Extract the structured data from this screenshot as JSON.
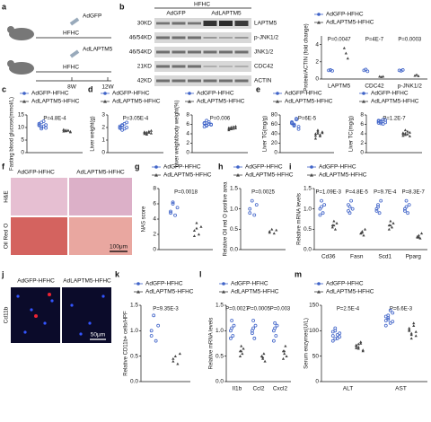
{
  "panel_letters": [
    "a",
    "b",
    "c",
    "d",
    "e",
    "f",
    "g",
    "h",
    "i",
    "j",
    "k",
    "l",
    "m"
  ],
  "schematic": {
    "virus1": "AdGFP",
    "virus2": "AdLAPTM5",
    "diet1": "HFHC",
    "diet2": "HFHC",
    "t1": "8W",
    "t2": "12W"
  },
  "blot": {
    "group": "HFHC",
    "lanes": [
      "AdGFP",
      "AdLAPTM5"
    ],
    "sizes": [
      "30KD",
      "46/54KD",
      "46/54KD",
      "21KD",
      "42KD"
    ],
    "proteins": [
      "LAPTM5",
      "p-JNK1/2",
      "JNK1/2",
      "CDC42",
      "ACTIN"
    ]
  },
  "histology": {
    "columns": [
      "AdGFP-HFHC",
      "AdLAPTM5-HFHC"
    ],
    "rows": [
      "H&E",
      "Oil Red O"
    ],
    "scale": "100μm"
  },
  "ihc": {
    "columns": [
      "AdGFP-HFHC",
      "AdLAPTM5-HFHC"
    ],
    "row": "Cd11b",
    "scale": "50μm"
  },
  "chart_data": [
    {
      "type": "dot",
      "y_label": "Protein/ACTIN (fold change)",
      "categories": [
        "LAPTM5",
        "CDC42",
        "p-JNK1/2"
      ],
      "ylim": [
        0,
        5
      ],
      "yticks": [
        0,
        2,
        4
      ],
      "annotations": [
        "P=0.0047",
        "P=4E-7",
        "P=0.0003"
      ],
      "series": [
        {
          "name": "AdGFP-HFHC",
          "color": "#3f63c8",
          "values": [
            [
              1,
              1.05,
              0.95
            ],
            [
              1,
              1.1,
              0.9
            ],
            [
              1,
              0.95,
              1.05
            ]
          ]
        },
        {
          "name": "AdLAPTM5-HFHC",
          "color": "#444444",
          "values": [
            [
              3.6,
              3,
              2.4
            ],
            [
              0.3,
              0.25,
              0.3
            ],
            [
              0.4,
              0.5,
              0.35
            ]
          ]
        }
      ]
    },
    {
      "type": "dot",
      "y_label": "Fasting blood glucose(mmol/L)",
      "ylim": [
        0,
        15
      ],
      "yticks": [
        0,
        5,
        10,
        15
      ],
      "annotations": [
        "P=4.8E-4"
      ],
      "series": [
        {
          "name": "AdGFP-HFHC",
          "color": "#3f63c8",
          "values": [
            [
              11,
              12,
              10.5,
              9.8,
              11.5,
              10.2,
              12.5,
              11,
              10.8,
              9.5
            ]
          ]
        },
        {
          "name": "AdLAPTM5-HFHC",
          "color": "#444444",
          "values": [
            [
              8.5,
              9,
              8.8,
              8.2,
              9.2,
              8.6,
              8.9,
              8.4,
              9.1,
              8.7
            ]
          ]
        }
      ]
    },
    {
      "type": "dot",
      "y_label": "Liver weight(g)",
      "ylim": [
        0,
        3
      ],
      "yticks": [
        0,
        1,
        2,
        3
      ],
      "annotations": [
        "P=3.05E-4"
      ],
      "series": [
        {
          "name": "AdGFP-HFHC",
          "color": "#3f63c8",
          "values": [
            [
              2.0,
              2.2,
              1.9,
              2.4,
              2.1,
              1.8,
              2.3,
              2.0,
              1.95,
              2.15
            ]
          ]
        },
        {
          "name": "AdLAPTM5-HFHC",
          "color": "#444444",
          "values": [
            [
              1.6,
              1.5,
              1.7,
              1.55,
              1.65,
              1.45,
              1.6,
              1.75,
              1.5,
              1.62
            ]
          ]
        }
      ]
    },
    {
      "type": "dot",
      "y_label": "Liver weight/body weight(%)",
      "ylim": [
        0,
        8
      ],
      "yticks": [
        0,
        2,
        4,
        6,
        8
      ],
      "annotations": [
        "P=0.006"
      ],
      "series": [
        {
          "name": "AdGFP-HFHC",
          "color": "#3f63c8",
          "values": [
            [
              6.2,
              5.8,
              6.5,
              6,
              5.5,
              6.8,
              6.1,
              5.9,
              6.3,
              5.7
            ]
          ]
        },
        {
          "name": "AdLAPTM5-HFHC",
          "color": "#444444",
          "values": [
            [
              5.3,
              5,
              5.5,
              5.2,
              4.8,
              5.4,
              5.1,
              5.6,
              5,
              5.2
            ]
          ]
        }
      ]
    },
    {
      "type": "dot",
      "y_label": "Liver TG(mg/g)",
      "ylim": [
        0,
        80
      ],
      "yticks": [
        0,
        20,
        40,
        60,
        80
      ],
      "annotations": [
        "P=6E-5"
      ],
      "series": [
        {
          "name": "AdGFP-HFHC",
          "color": "#3f63c8",
          "values": [
            [
              62,
              58,
              70,
              55,
              65,
              60,
              72,
              50,
              63,
              57
            ]
          ]
        },
        {
          "name": "AdLAPTM5-HFHC",
          "color": "#444444",
          "values": [
            [
              40,
              45,
              35,
              42,
              30,
              48,
              38,
              44,
              36,
              41
            ]
          ]
        }
      ]
    },
    {
      "type": "dot",
      "y_label": "Liver TC(mg/g)",
      "ylim": [
        0,
        8
      ],
      "yticks": [
        0,
        2,
        4,
        6,
        8
      ],
      "annotations": [
        "P=1.2E-7"
      ],
      "series": [
        {
          "name": "AdGFP-HFHC",
          "color": "#3f63c8",
          "values": [
            [
              6.6,
              6.2,
              7,
              6.4,
              6.8,
              6.5,
              6.1,
              6.9,
              6.3,
              6.7
            ]
          ]
        },
        {
          "name": "AdLAPTM5-HFHC",
          "color": "#444444",
          "values": [
            [
              4.2,
              3.8,
              4.5,
              3.5,
              4,
              4.8,
              3.9,
              4.3,
              3.6,
              4.1
            ]
          ]
        }
      ]
    },
    {
      "type": "dot",
      "y_label": "NAS score",
      "ylim": [
        0,
        8
      ],
      "yticks": [
        0,
        2,
        4,
        6,
        8
      ],
      "annotations": [
        "P=0.0018"
      ],
      "series": [
        {
          "name": "AdGFP-HFHC",
          "color": "#3f63c8",
          "values": [
            [
              5,
              6,
              4.5,
              5.5,
              4.8,
              6.2
            ]
          ]
        },
        {
          "name": "AdLAPTM5-HFHC",
          "color": "#444444",
          "values": [
            [
              2.5,
              3.5,
              2,
              3,
              1.8,
              2.8
            ]
          ]
        }
      ]
    },
    {
      "type": "dot",
      "y_label": "Relative Oil red O positive area",
      "ylim": [
        0,
        1.5
      ],
      "yticks": [
        {
          "value": 0,
          "label": "0.0"
        },
        {
          "value": 0.5,
          "label": "0.5"
        },
        {
          "value": 1,
          "label": "1.0"
        },
        {
          "value": 1.5,
          "label": "1.5"
        }
      ],
      "annotations": [
        "P=0.0025"
      ],
      "series": [
        {
          "name": "AdGFP-HFHC",
          "color": "#3f63c8",
          "values": [
            [
              1.0,
              1.2,
              0.85,
              1.1,
              0.9
            ]
          ]
        },
        {
          "name": "AdLAPTM5-HFHC",
          "color": "#444444",
          "values": [
            [
              0.45,
              0.5,
              0.4,
              0.48,
              0.42
            ]
          ]
        }
      ]
    },
    {
      "type": "dot",
      "y_label": "Relative mRNA levels",
      "categories": [
        "Cd36",
        "Fasn",
        "Scd1",
        "Pparg"
      ],
      "ylim": [
        0,
        1.5
      ],
      "yticks": [
        {
          "value": 0,
          "label": "0.0"
        },
        {
          "value": 0.5,
          "label": "0.5"
        },
        {
          "value": 1,
          "label": "1.0"
        },
        {
          "value": 1.5,
          "label": "1.5"
        }
      ],
      "annotations": [
        "P=1.09E-3",
        "P=4.8E-5",
        "P=9.7E-4",
        "P=8.3E-7"
      ],
      "series": [
        {
          "name": "AdGFP-HFHC",
          "color": "#3f63c8",
          "values": [
            [
              1,
              1.2,
              0.9,
              1.1,
              0.85,
              1.05
            ],
            [
              1.1,
              0.9,
              1.2,
              1,
              0.95,
              1.05
            ],
            [
              1.0,
              1.1,
              0.9,
              1.2,
              0.95,
              1.05
            ],
            [
              1,
              1.2,
              0.9,
              1.1,
              0.95,
              1.05
            ]
          ]
        },
        {
          "name": "AdLAPTM5-HFHC",
          "color": "#444444",
          "values": [
            [
              0.6,
              0.7,
              0.5,
              0.65,
              0.55,
              0.6
            ],
            [
              0.4,
              0.45,
              0.35,
              0.5,
              0.4,
              0.42
            ],
            [
              0.6,
              0.7,
              0.55,
              0.65,
              0.5,
              0.6
            ],
            [
              0.3,
              0.35,
              0.28,
              0.4,
              0.32,
              0.3
            ]
          ]
        }
      ]
    },
    {
      "type": "dot",
      "y_label": "Relative CD11b+ cells/HPF",
      "ylim": [
        0,
        1.5
      ],
      "yticks": [
        {
          "value": 0,
          "label": "0.0"
        },
        {
          "value": 0.5,
          "label": "0.5"
        },
        {
          "value": 1,
          "label": "1.0"
        },
        {
          "value": 1.5,
          "label": "1.5"
        }
      ],
      "annotations": [
        "P=9.35E-3"
      ],
      "series": [
        {
          "name": "AdGFP-HFHC",
          "color": "#3f63c8",
          "values": [
            [
              1,
              1.3,
              0.8,
              1.1,
              0.9
            ]
          ]
        },
        {
          "name": "AdLAPTM5-HFHC",
          "color": "#444444",
          "values": [
            [
              0.45,
              0.5,
              0.35,
              0.55,
              0.4
            ]
          ]
        }
      ]
    },
    {
      "type": "dot",
      "y_label": "Relative mRNA levels",
      "categories": [
        "Il1b",
        "Ccl2",
        "Cxcl2"
      ],
      "ylim": [
        0,
        1.5
      ],
      "yticks": [
        {
          "value": 0,
          "label": "0.0"
        },
        {
          "value": 0.5,
          "label": "0.5"
        },
        {
          "value": 1,
          "label": "1.0"
        },
        {
          "value": 1.5,
          "label": "1.5"
        }
      ],
      "annotations": [
        "P=0.0027",
        "P=0.0005",
        "P=0.003"
      ],
      "series": [
        {
          "name": "AdGFP-HFHC",
          "color": "#3f63c8",
          "values": [
            [
              1,
              1.2,
              0.9,
              1.1,
              0.85,
              1.05
            ],
            [
              1,
              1.2,
              0.85,
              1.1,
              0.95,
              1.05
            ],
            [
              1,
              1.15,
              0.9,
              1.1,
              0.8,
              1.05
            ]
          ]
        },
        {
          "name": "AdLAPTM5-HFHC",
          "color": "#444444",
          "values": [
            [
              0.6,
              0.7,
              0.55,
              0.65,
              0.5,
              0.6
            ],
            [
              0.5,
              0.45,
              0.55,
              0.4,
              0.5,
              0.48
            ],
            [
              0.6,
              0.55,
              0.7,
              0.5,
              0.45,
              0.6
            ]
          ]
        }
      ]
    },
    {
      "type": "dot",
      "y_label": "Serum enzymes(U/L)",
      "categories": [
        "ALT",
        "AST"
      ],
      "ylim": [
        0,
        150
      ],
      "yticks": [
        0,
        50,
        100,
        150
      ],
      "annotations": [
        "P=2.5E-4",
        "P=6.6E-3"
      ],
      "series": [
        {
          "name": "AdGFP-HFHC",
          "color": "#3f63c8",
          "values": [
            [
              90,
              100,
              85,
              95,
              80,
              105,
              92,
              88,
              98,
              84
            ],
            [
              120,
              130,
              115,
              135,
              110,
              125,
              140,
              118,
              128,
              122
            ]
          ]
        },
        {
          "name": "AdLAPTM5-HFHC",
          "color": "#444444",
          "values": [
            [
              70,
              65,
              75,
              60,
              72,
              68,
              78,
              62,
              66,
              74
            ],
            [
              100,
              95,
              110,
              90,
              105,
              85,
              115,
              98,
              102,
              92
            ]
          ]
        }
      ]
    }
  ]
}
